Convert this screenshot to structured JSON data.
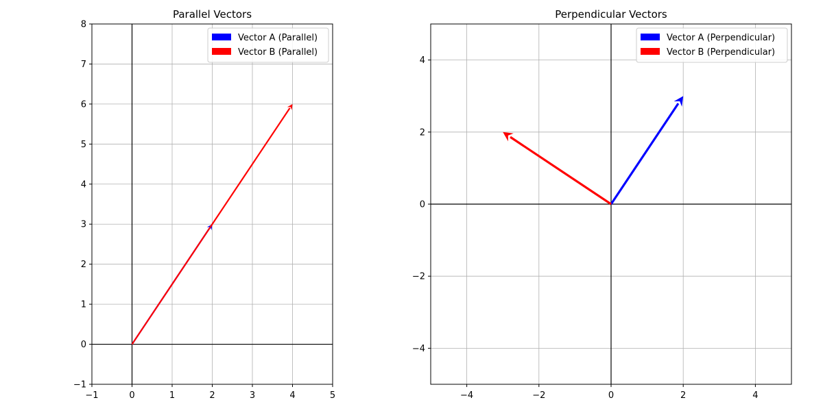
{
  "chart_data": [
    {
      "type": "vector",
      "title": "Parallel Vectors",
      "xlim": [
        -1,
        5
      ],
      "ylim": [
        -1,
        8
      ],
      "xticks": [
        -1,
        0,
        1,
        2,
        3,
        4,
        5
      ],
      "yticks": [
        -1,
        0,
        1,
        2,
        3,
        4,
        5,
        6,
        7,
        8
      ],
      "grid": true,
      "legend_position": "top-right",
      "vectors": [
        {
          "name": "Vector A (Parallel)",
          "origin": [
            0,
            0
          ],
          "components": [
            2,
            3
          ],
          "color": "#0000ff"
        },
        {
          "name": "Vector B (Parallel)",
          "origin": [
            0,
            0
          ],
          "components": [
            4,
            6
          ],
          "color": "#ff0000"
        }
      ]
    },
    {
      "type": "vector",
      "title": "Perpendicular Vectors",
      "xlim": [
        -5,
        5
      ],
      "ylim": [
        -5,
        5
      ],
      "xticks": [
        -4,
        -2,
        0,
        2,
        4
      ],
      "yticks": [
        -4,
        -2,
        0,
        2,
        4
      ],
      "grid": true,
      "legend_position": "top-right",
      "vectors": [
        {
          "name": "Vector A (Perpendicular)",
          "origin": [
            0,
            0
          ],
          "components": [
            2,
            3
          ],
          "color": "#0000ff"
        },
        {
          "name": "Vector B (Perpendicular)",
          "origin": [
            0,
            0
          ],
          "components": [
            -3,
            2
          ],
          "color": "#ff0000"
        }
      ]
    }
  ]
}
